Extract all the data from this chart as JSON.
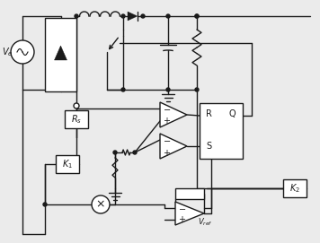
{
  "bg": "#ebebeb",
  "lc": "#1a1a1a",
  "bc": "#ffffff",
  "lw": 1.0,
  "figsize": [
    3.56,
    2.71
  ],
  "dpi": 100,
  "Ve": "$V_e$",
  "Rs": "$R_s$",
  "K1": "$K_1$",
  "K2": "$K_2$",
  "Vref": "$V_{ref}$",
  "R_lbl": "R",
  "Q_lbl": "Q",
  "S_lbl": "S"
}
